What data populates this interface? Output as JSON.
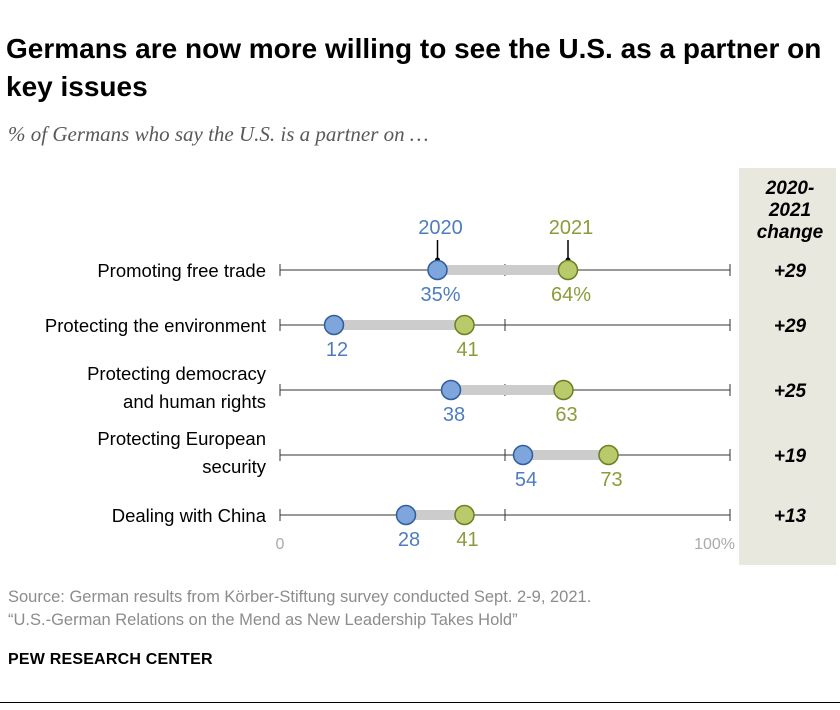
{
  "title": "Germans are now more willing to see the U.S. as a partner on key issues",
  "subtitle": "% of Germans who say the U.S. is a partner on …",
  "source_line1": "Source: German results from Körber-Stiftung survey conducted Sept. 2-9, 2021.",
  "source_line2": "“U.S.-German Relations on the Mend as New Leadership Takes Hold”",
  "logo": "PEW RESEARCH CENTER",
  "colors": {
    "blue": "#4e7dbf",
    "blue_fill": "#7ea6dc",
    "green": "#8a9c3a",
    "green_fill": "#b8ca6a",
    "connector": "#cccccc",
    "panel": "#e8e8df"
  },
  "chart_data": {
    "type": "dot",
    "xlim": [
      0,
      100
    ],
    "axis_min_label": "0",
    "axis_max_label": "100%",
    "series": [
      {
        "name": "2020",
        "key": "y2020"
      },
      {
        "name": "2021",
        "key": "y2021"
      }
    ],
    "change_header": [
      "2020-",
      "2021",
      "change"
    ],
    "rows": [
      {
        "label": [
          "Promoting free trade"
        ],
        "y2020": 35,
        "y2021": 64,
        "label2020": "35%",
        "label2021": "64%",
        "change": "+29"
      },
      {
        "label": [
          "Protecting the environment"
        ],
        "y2020": 12,
        "y2021": 41,
        "label2020": "12",
        "label2021": "41",
        "change": "+29"
      },
      {
        "label": [
          "Protecting democracy",
          "and human rights"
        ],
        "y2020": 38,
        "y2021": 63,
        "label2020": "38",
        "label2021": "63",
        "change": "+25"
      },
      {
        "label": [
          "Protecting European",
          "security"
        ],
        "y2020": 54,
        "y2021": 73,
        "label2020": "54",
        "label2021": "73",
        "change": "+19"
      },
      {
        "label": [
          "Dealing with China"
        ],
        "y2020": 28,
        "y2021": 41,
        "label2020": "28",
        "label2021": "41",
        "change": "+13"
      }
    ]
  }
}
